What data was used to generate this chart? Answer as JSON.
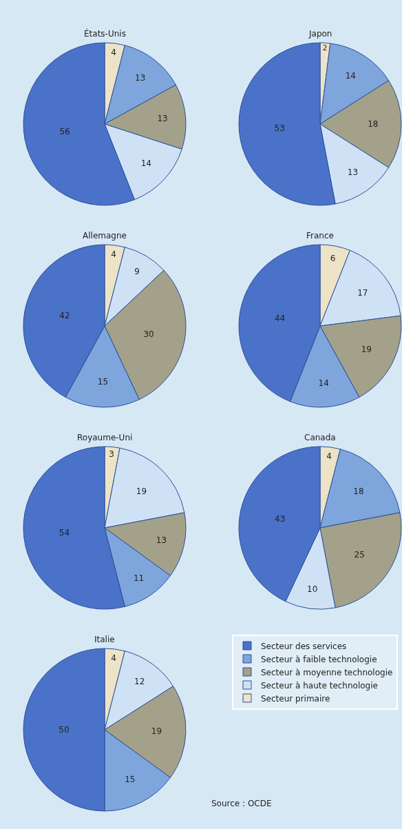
{
  "chart_data": [
    {
      "type": "pie",
      "title": "États-Unis",
      "categories": [
        null,
        null,
        null,
        null,
        null
      ],
      "values": [
        4,
        13,
        13,
        14,
        56
      ],
      "colors": [
        "#ede3c6",
        "#7fa6dc",
        "#a3a189",
        "#cfe2f5",
        "#4a72c8"
      ],
      "data_labels": true
    },
    {
      "type": "pie",
      "title": "Japon",
      "categories": [
        null,
        null,
        null,
        null,
        null
      ],
      "values": [
        2,
        14,
        18,
        13,
        53
      ],
      "colors": [
        "#ede3c6",
        "#7fa6dc",
        "#a3a189",
        "#cfe2f5",
        "#4a72c8"
      ],
      "data_labels": true
    },
    {
      "type": "pie",
      "title": "Allemagne",
      "categories": [
        null,
        null,
        null,
        null,
        null
      ],
      "values": [
        4,
        9,
        30,
        15,
        42
      ],
      "colors": [
        "#ede3c6",
        "#cfe2f5",
        "#a3a189",
        "#7fa6dc",
        "#4a72c8"
      ],
      "data_labels": true
    },
    {
      "type": "pie",
      "title": "France",
      "categories": [
        null,
        null,
        null,
        null,
        null
      ],
      "values": [
        6,
        17,
        19,
        14,
        44
      ],
      "colors": [
        "#ede3c6",
        "#cfe2f5",
        "#a3a189",
        "#7fa6dc",
        "#4a72c8"
      ],
      "data_labels": true
    },
    {
      "type": "pie",
      "title": "Royaume-Uni",
      "categories": [
        null,
        null,
        null,
        null,
        null
      ],
      "values": [
        3,
        19,
        13,
        11,
        54
      ],
      "colors": [
        "#ede3c6",
        "#cfe2f5",
        "#a3a189",
        "#7fa6dc",
        "#4a72c8"
      ],
      "data_labels": true
    },
    {
      "type": "pie",
      "title": "Canada",
      "categories": [
        null,
        null,
        null,
        null,
        null
      ],
      "values": [
        4,
        18,
        25,
        10,
        43
      ],
      "colors": [
        "#ede3c6",
        "#7fa6dc",
        "#a3a189",
        "#cfe2f5",
        "#4a72c8"
      ],
      "data_labels": true
    },
    {
      "type": "pie",
      "title": "Italie",
      "categories": [
        "Secteur primaire",
        "Secteur à haute technologie",
        "Secteur à moyenne technologie",
        "Secteur à faible technologie",
        "Secteur des services"
      ],
      "values": [
        4,
        12,
        19,
        15,
        50
      ],
      "colors": [
        "#ede3c6",
        "#cfe2f5",
        "#a3a189",
        "#7fa6dc",
        "#4a72c8"
      ],
      "data_labels": true,
      "legend": "right",
      "annotations": [
        "Source : OCDE"
      ]
    }
  ]
}
